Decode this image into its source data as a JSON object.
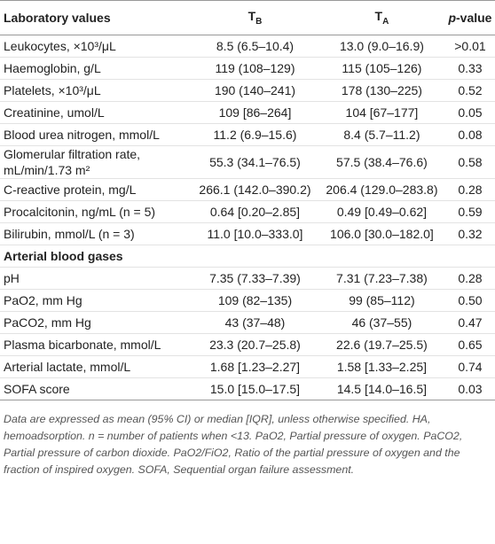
{
  "table": {
    "header": [
      {
        "text": "Laboratory values"
      },
      {
        "text": "T",
        "sub": "B"
      },
      {
        "text": "T",
        "sub": "A"
      },
      {
        "text": "p",
        "rest": "-value"
      }
    ],
    "rows": [
      [
        "Leukocytes, ×10³/μL",
        "8.5 (6.5–10.4)",
        "13.0 (9.0–16.9)",
        ">0.01"
      ],
      [
        "Haemoglobin, g/L",
        "119 (108–129)",
        "115 (105–126)",
        "0.33"
      ],
      [
        "Platelets, ×10³/μL",
        "190 (140–241)",
        "178 (130–225)",
        "0.52"
      ],
      [
        "Creatinine, umol/L",
        "109 [86–264]",
        "104 [67–177]",
        "0.05"
      ],
      [
        "Blood urea nitrogen, mmol/L",
        "11.2 (6.9–15.6)",
        "8.4 (5.7–11.2)",
        "0.08"
      ],
      [
        "Glomerular filtration rate, mL/min/1.73 m²",
        "55.3 (34.1–76.5)",
        "57.5 (38.4–76.6)",
        "0.58"
      ],
      [
        "C-reactive protein, mg/L",
        "266.1 (142.0–390.2)",
        "206.4 (129.0–283.8)",
        "0.28"
      ],
      [
        "Procalcitonin, ng/mL (n = 5)",
        "0.64 [0.20–2.85]",
        "0.49 [0.49–0.62]",
        "0.59"
      ],
      [
        "Bilirubin, mmol/L (n = 3)",
        "11.0 [10.0–333.0]",
        "106.0 [30.0–182.0]",
        "0.32"
      ],
      [
        "Arterial blood gases"
      ],
      [
        "pH",
        "7.35 (7.33–7.39)",
        "7.31 (7.23–7.38)",
        "0.28"
      ],
      [
        "PaO2, mm Hg",
        "109 (82–135)",
        "99 (85–112)",
        "0.50"
      ],
      [
        "PaCO2, mm Hg",
        "43 (37–48)",
        "46 (37–55)",
        "0.47"
      ],
      [
        "Plasma bicarbonate, mmol/L",
        "23.3 (20.7–25.8)",
        "22.6 (19.7–25.5)",
        "0.65"
      ],
      [
        "Arterial lactate, mmol/L",
        "1.68 [1.23–2.27]",
        "1.58 [1.33–2.25]",
        "0.74"
      ],
      [
        "SOFA score",
        "15.0 [15.0–17.5]",
        "14.5 [14.0–16.5]",
        "0.03"
      ]
    ],
    "footnote": "Data are expressed as mean (95% CI) or median [IQR], unless otherwise specified. HA, hemoadsorption. n = number of patients when <13. PaO2, Partial pressure of oxygen. PaCO2, Partial pressure of carbon dioxide. PaO2/FiO2, Ratio of the partial pressure of oxygen and the fraction of inspired oxygen. SOFA, Sequential organ failure assessment."
  }
}
